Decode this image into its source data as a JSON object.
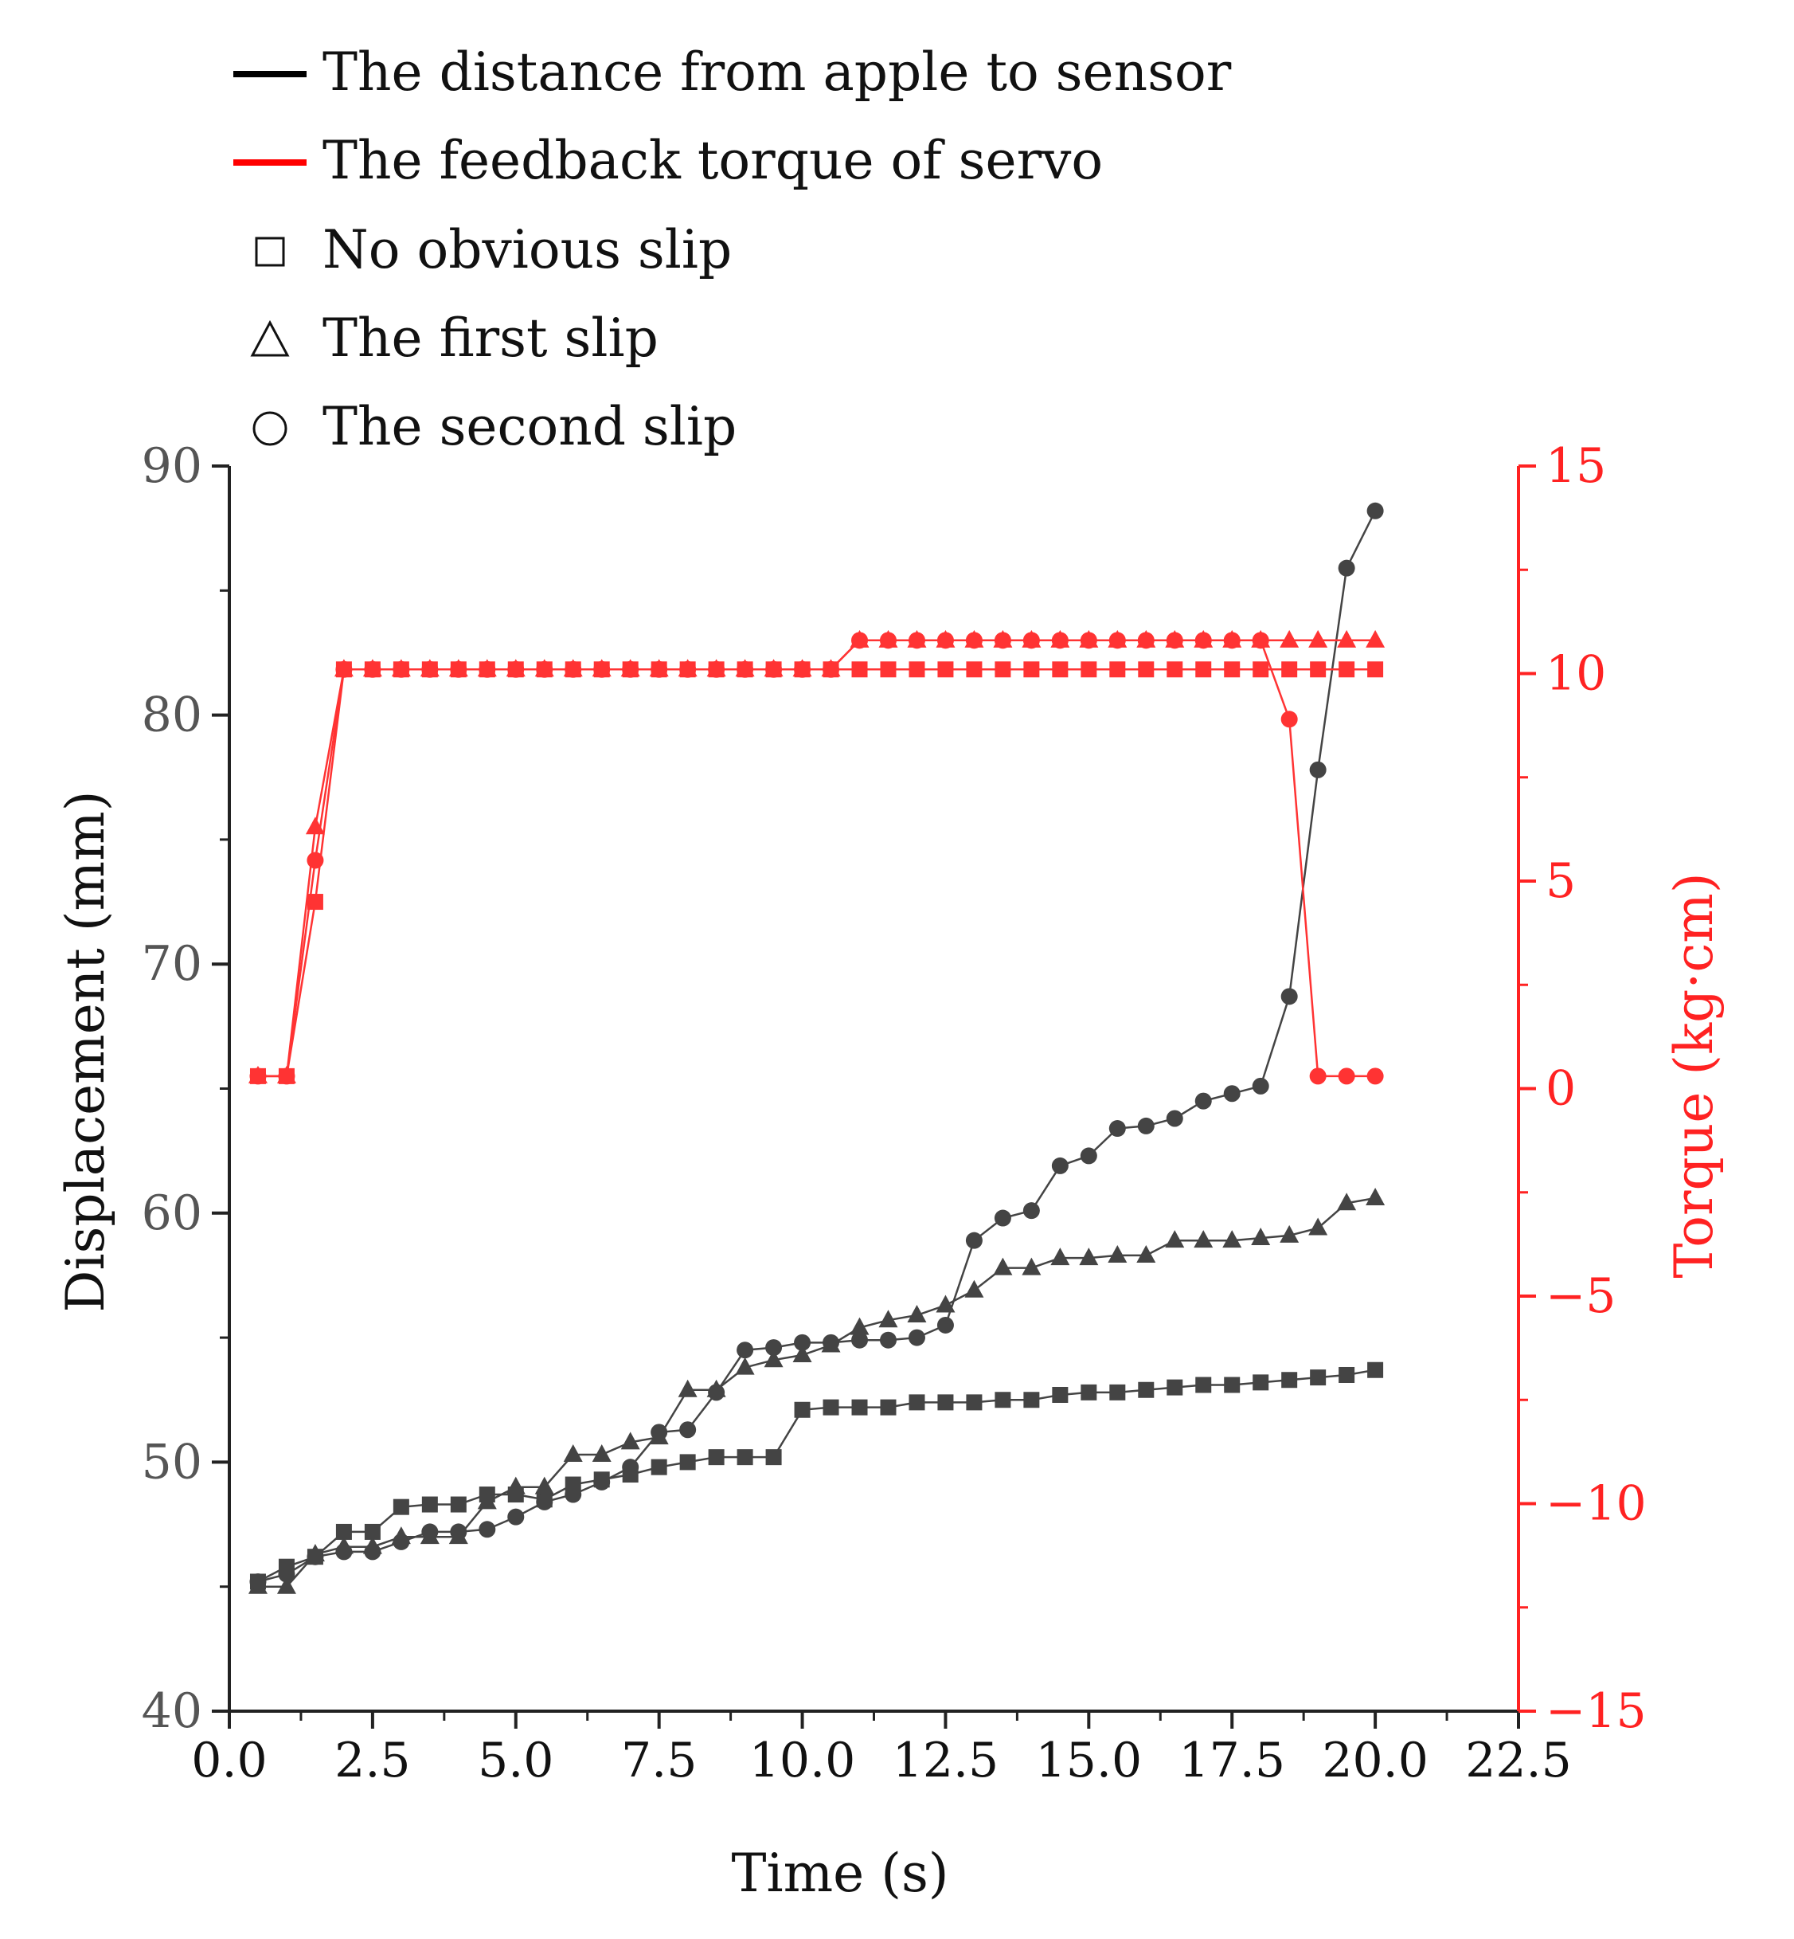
{
  "chart_data": {
    "type": "line",
    "title": "",
    "xlabel": "Time (s)",
    "ylabel": "Displacement (mm)",
    "y2label": "Torque (kg·cm)",
    "xlim": [
      0,
      22.5
    ],
    "ylim": [
      40,
      90
    ],
    "y2lim": [
      -15,
      15
    ],
    "x_ticks": [
      0,
      2.5,
      5,
      7.5,
      10,
      12.5,
      15,
      17.5,
      20,
      22.5
    ],
    "x_tick_labels": [
      "0.0",
      "2.5",
      "5.0",
      "7.5",
      "10.0",
      "12.5",
      "15.0",
      "17.5",
      "20.0",
      "22.5"
    ],
    "y_ticks": [
      40,
      50,
      60,
      70,
      80,
      90
    ],
    "y_tick_labels": [
      "40",
      "50",
      "60",
      "70",
      "80",
      "90"
    ],
    "y2_ticks": [
      -15,
      -10,
      -5,
      0,
      5,
      10,
      15
    ],
    "y2_tick_labels": [
      "−15",
      "−10",
      "−5",
      "0",
      "5",
      "10",
      "15"
    ],
    "grid": false,
    "legend_position": "top-left",
    "legend": [
      {
        "label": "The distance from apple to sensor",
        "symbol": "line",
        "color": "#000000"
      },
      {
        "label": "The feedback torque of servo",
        "symbol": "line",
        "color": "#ff0000"
      },
      {
        "label": "No obvious slip",
        "symbol": "square",
        "color": "#000000"
      },
      {
        "label": "The first slip",
        "symbol": "triangle",
        "color": "#000000"
      },
      {
        "label": "The second slip",
        "symbol": "circle",
        "color": "#000000"
      }
    ],
    "colors": {
      "displacement": "#444444",
      "torque": "#ff3333",
      "right_axis": "#ff2222",
      "left_tick_text": "#555555"
    },
    "x": [
      0.5,
      1.0,
      1.5,
      2.0,
      2.5,
      3.0,
      3.5,
      4.0,
      4.5,
      5.0,
      5.5,
      6.0,
      6.5,
      7.0,
      7.5,
      8.0,
      8.5,
      9.0,
      9.5,
      10.0,
      10.5,
      11.0,
      11.5,
      12.0,
      12.5,
      13.0,
      13.5,
      14.0,
      14.5,
      15.0,
      15.5,
      16.0,
      16.5,
      17.0,
      17.5,
      18.0,
      18.5,
      19.0,
      19.5,
      20.0
    ],
    "series": [
      {
        "name": "No obvious slip – distance",
        "axis": "left",
        "marker": "square",
        "values": [
          45.2,
          45.8,
          46.2,
          47.2,
          47.2,
          48.2,
          48.3,
          48.3,
          48.7,
          48.7,
          48.5,
          49.1,
          49.3,
          49.5,
          49.8,
          50.0,
          50.2,
          50.2,
          50.2,
          52.1,
          52.2,
          52.2,
          52.2,
          52.4,
          52.4,
          52.4,
          52.5,
          52.5,
          52.7,
          52.8,
          52.8,
          52.9,
          53.0,
          53.1,
          53.1,
          53.2,
          53.3,
          53.4,
          53.5,
          53.7
        ]
      },
      {
        "name": "The first slip – distance",
        "axis": "left",
        "marker": "triangle",
        "values": [
          45.0,
          45.0,
          46.3,
          46.6,
          46.6,
          47.0,
          47.0,
          47.0,
          48.4,
          49.0,
          49.0,
          50.3,
          50.3,
          50.8,
          51.0,
          52.9,
          52.9,
          53.8,
          54.1,
          54.3,
          54.7,
          55.4,
          55.7,
          55.9,
          56.3,
          56.9,
          57.8,
          57.8,
          58.2,
          58.2,
          58.3,
          58.3,
          58.9,
          58.9,
          58.9,
          59.0,
          59.1,
          59.4,
          60.4,
          60.6
        ]
      },
      {
        "name": "The second slip – distance",
        "axis": "left",
        "marker": "circle",
        "values": [
          45.2,
          45.5,
          46.2,
          46.4,
          46.4,
          46.8,
          47.2,
          47.2,
          47.3,
          47.8,
          48.4,
          48.7,
          49.2,
          49.8,
          51.2,
          51.3,
          52.8,
          54.5,
          54.6,
          54.8,
          54.8,
          54.9,
          54.9,
          55.0,
          55.5,
          58.9,
          59.8,
          60.1,
          61.9,
          62.3,
          63.4,
          63.5,
          63.8,
          64.5,
          64.8,
          65.1,
          68.7,
          77.8,
          85.9,
          88.2
        ]
      },
      {
        "name": "No obvious slip – torque",
        "axis": "right",
        "marker": "square",
        "values": [
          0.3,
          0.3,
          4.5,
          10.1,
          10.1,
          10.1,
          10.1,
          10.1,
          10.1,
          10.1,
          10.1,
          10.1,
          10.1,
          10.1,
          10.1,
          10.1,
          10.1,
          10.1,
          10.1,
          10.1,
          10.1,
          10.1,
          10.1,
          10.1,
          10.1,
          10.1,
          10.1,
          10.1,
          10.1,
          10.1,
          10.1,
          10.1,
          10.1,
          10.1,
          10.1,
          10.1,
          10.1,
          10.1,
          10.1,
          10.1
        ]
      },
      {
        "name": "The first slip – torque",
        "axis": "right",
        "marker": "triangle",
        "values": [
          0.3,
          0.3,
          6.3,
          10.1,
          10.1,
          10.1,
          10.1,
          10.1,
          10.1,
          10.1,
          10.1,
          10.1,
          10.1,
          10.1,
          10.1,
          10.1,
          10.1,
          10.1,
          10.1,
          10.1,
          10.1,
          10.8,
          10.8,
          10.8,
          10.8,
          10.8,
          10.8,
          10.8,
          10.8,
          10.8,
          10.8,
          10.8,
          10.8,
          10.8,
          10.8,
          10.8,
          10.8,
          10.8,
          10.8,
          10.8
        ]
      },
      {
        "name": "The second slip – torque",
        "axis": "right",
        "marker": "circle",
        "values": [
          0.3,
          0.3,
          5.5,
          10.1,
          10.1,
          10.1,
          10.1,
          10.1,
          10.1,
          10.1,
          10.1,
          10.1,
          10.1,
          10.1,
          10.1,
          10.1,
          10.1,
          10.1,
          10.1,
          10.1,
          10.1,
          10.8,
          10.8,
          10.8,
          10.8,
          10.8,
          10.8,
          10.8,
          10.8,
          10.8,
          10.8,
          10.8,
          10.8,
          10.8,
          10.8,
          10.8,
          8.9,
          0.3,
          0.3,
          0.3
        ]
      }
    ]
  }
}
